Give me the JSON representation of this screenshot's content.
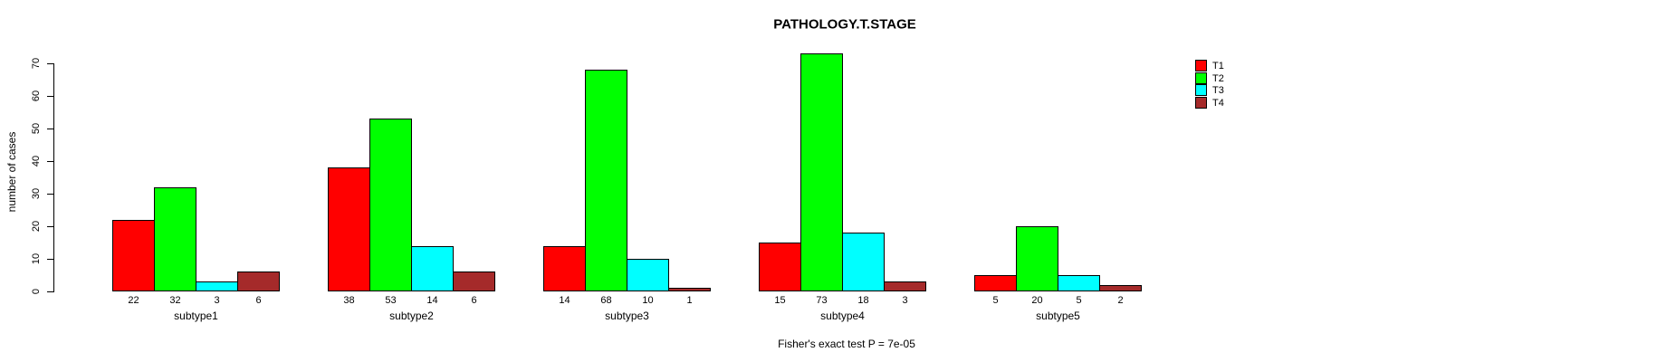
{
  "title": "PATHOLOGY.T.STAGE",
  "chart_data": {
    "type": "bar",
    "title": "PATHOLOGY.T.STAGE",
    "xlabel": "",
    "ylabel": "number of cases",
    "categories": [
      "subtype1",
      "subtype2",
      "subtype3",
      "subtype4",
      "subtype5"
    ],
    "series": [
      {
        "name": "T1",
        "color": "#ff0000",
        "values": [
          22,
          38,
          14,
          15,
          5
        ]
      },
      {
        "name": "T2",
        "color": "#00ff00",
        "values": [
          32,
          53,
          68,
          73,
          20
        ]
      },
      {
        "name": "T3",
        "color": "#00ffff",
        "values": [
          3,
          14,
          10,
          18,
          5
        ]
      },
      {
        "name": "T4",
        "color": "#a52a2a",
        "values": [
          6,
          6,
          1,
          3,
          2
        ]
      }
    ],
    "ylim": [
      0,
      70
    ],
    "yticks": [
      0,
      10,
      20,
      30,
      40,
      50,
      60,
      70
    ],
    "grid": false,
    "bar_value_labels": true,
    "legend_position": "top-right",
    "legend_items": [
      "T1",
      "T2",
      "T3",
      "T4"
    ],
    "annotation": "Fisher's exact test P = 7e-05"
  }
}
